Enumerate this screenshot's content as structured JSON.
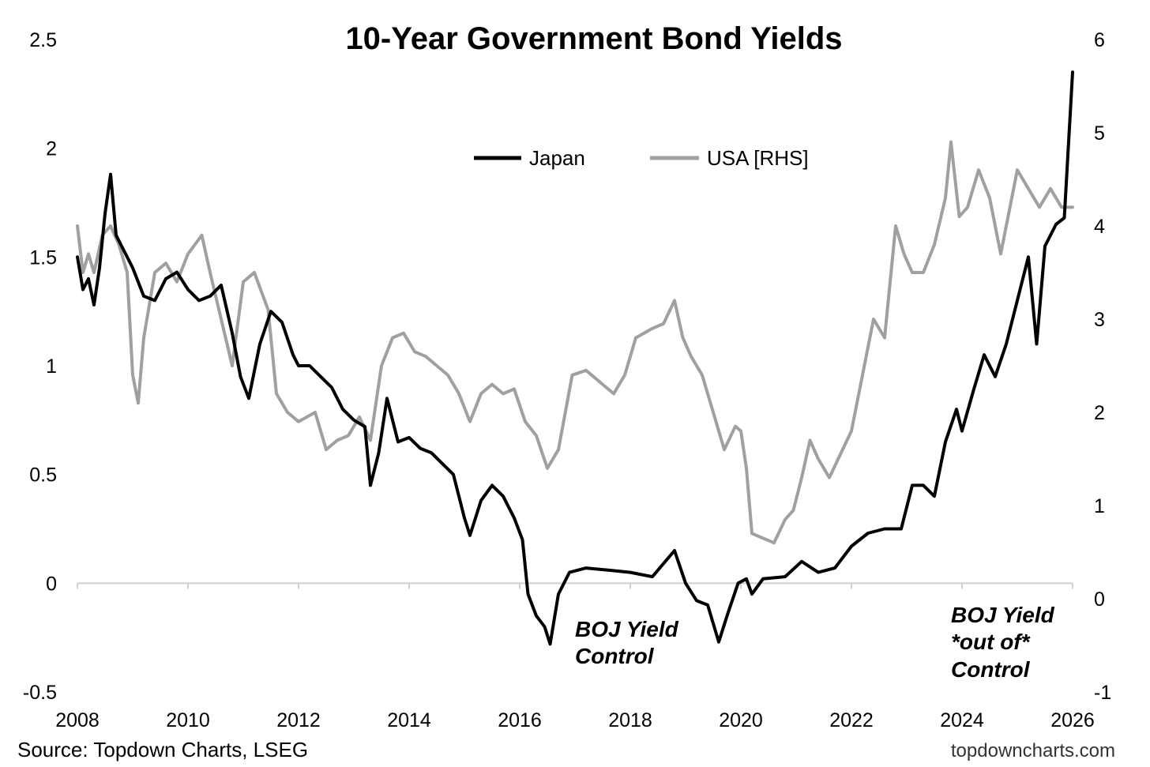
{
  "chart_data": {
    "type": "line",
    "title": "10-Year Government Bond Yields",
    "x_ticks": [
      "2008",
      "2010",
      "2012",
      "2014",
      "2016",
      "2018",
      "2020",
      "2022",
      "2024",
      "2026"
    ],
    "x_range": [
      2008,
      2026
    ],
    "y_left": {
      "ylim": [
        -0.5,
        2.5
      ],
      "ticks": [
        "-0.5",
        "0",
        "0.5",
        "1",
        "1.5",
        "2",
        "2.5"
      ]
    },
    "y_right": {
      "ylim": [
        -1,
        6
      ],
      "ticks": [
        "-1",
        "0",
        "1",
        "2",
        "3",
        "4",
        "5",
        "6"
      ]
    },
    "zero_line": true,
    "legend_position": "top-center",
    "series": [
      {
        "name": "Japan",
        "axis": "left",
        "color": "#000000",
        "points": [
          [
            2008.0,
            1.5
          ],
          [
            2008.1,
            1.35
          ],
          [
            2008.2,
            1.4
          ],
          [
            2008.3,
            1.28
          ],
          [
            2008.4,
            1.45
          ],
          [
            2008.5,
            1.7
          ],
          [
            2008.6,
            1.88
          ],
          [
            2008.7,
            1.6
          ],
          [
            2008.8,
            1.55
          ],
          [
            2008.9,
            1.5
          ],
          [
            2009.0,
            1.45
          ],
          [
            2009.2,
            1.32
          ],
          [
            2009.4,
            1.3
          ],
          [
            2009.6,
            1.4
          ],
          [
            2009.8,
            1.43
          ],
          [
            2010.0,
            1.35
          ],
          [
            2010.2,
            1.3
          ],
          [
            2010.4,
            1.32
          ],
          [
            2010.6,
            1.37
          ],
          [
            2010.8,
            1.15
          ],
          [
            2010.95,
            0.95
          ],
          [
            2011.1,
            0.85
          ],
          [
            2011.3,
            1.1
          ],
          [
            2011.5,
            1.25
          ],
          [
            2011.7,
            1.2
          ],
          [
            2011.9,
            1.05
          ],
          [
            2012.0,
            1.0
          ],
          [
            2012.2,
            1.0
          ],
          [
            2012.4,
            0.95
          ],
          [
            2012.6,
            0.9
          ],
          [
            2012.8,
            0.8
          ],
          [
            2013.0,
            0.75
          ],
          [
            2013.2,
            0.72
          ],
          [
            2013.3,
            0.45
          ],
          [
            2013.45,
            0.6
          ],
          [
            2013.6,
            0.85
          ],
          [
            2013.8,
            0.65
          ],
          [
            2014.0,
            0.67
          ],
          [
            2014.2,
            0.62
          ],
          [
            2014.4,
            0.6
          ],
          [
            2014.6,
            0.55
          ],
          [
            2014.8,
            0.5
          ],
          [
            2015.0,
            0.3
          ],
          [
            2015.1,
            0.22
          ],
          [
            2015.3,
            0.38
          ],
          [
            2015.5,
            0.45
          ],
          [
            2015.7,
            0.4
          ],
          [
            2015.9,
            0.3
          ],
          [
            2016.05,
            0.2
          ],
          [
            2016.15,
            -0.05
          ],
          [
            2016.3,
            -0.15
          ],
          [
            2016.45,
            -0.2
          ],
          [
            2016.55,
            -0.28
          ],
          [
            2016.7,
            -0.05
          ],
          [
            2016.9,
            0.05
          ],
          [
            2017.2,
            0.07
          ],
          [
            2017.6,
            0.06
          ],
          [
            2018.0,
            0.05
          ],
          [
            2018.4,
            0.03
          ],
          [
            2018.8,
            0.15
          ],
          [
            2019.0,
            0.0
          ],
          [
            2019.2,
            -0.08
          ],
          [
            2019.4,
            -0.1
          ],
          [
            2019.6,
            -0.27
          ],
          [
            2019.75,
            -0.15
          ],
          [
            2019.95,
            0.0
          ],
          [
            2020.1,
            0.02
          ],
          [
            2020.2,
            -0.05
          ],
          [
            2020.4,
            0.02
          ],
          [
            2020.8,
            0.03
          ],
          [
            2021.1,
            0.1
          ],
          [
            2021.4,
            0.05
          ],
          [
            2021.7,
            0.07
          ],
          [
            2022.0,
            0.17
          ],
          [
            2022.3,
            0.23
          ],
          [
            2022.6,
            0.25
          ],
          [
            2022.9,
            0.25
          ],
          [
            2023.1,
            0.45
          ],
          [
            2023.3,
            0.45
          ],
          [
            2023.5,
            0.4
          ],
          [
            2023.7,
            0.65
          ],
          [
            2023.9,
            0.8
          ],
          [
            2024.0,
            0.7
          ],
          [
            2024.2,
            0.88
          ],
          [
            2024.4,
            1.05
          ],
          [
            2024.6,
            0.95
          ],
          [
            2024.8,
            1.1
          ],
          [
            2025.0,
            1.3
          ],
          [
            2025.2,
            1.5
          ],
          [
            2025.35,
            1.1
          ],
          [
            2025.5,
            1.55
          ],
          [
            2025.7,
            1.65
          ],
          [
            2025.85,
            1.68
          ],
          [
            2026.0,
            2.35
          ]
        ]
      },
      {
        "name": "USA [RHS]",
        "axis": "right",
        "color": "#a0a0a0",
        "points": [
          [
            2008.0,
            4.0
          ],
          [
            2008.1,
            3.5
          ],
          [
            2008.2,
            3.7
          ],
          [
            2008.3,
            3.5
          ],
          [
            2008.45,
            3.9
          ],
          [
            2008.6,
            4.0
          ],
          [
            2008.75,
            3.8
          ],
          [
            2008.9,
            3.5
          ],
          [
            2009.0,
            2.4
          ],
          [
            2009.1,
            2.1
          ],
          [
            2009.2,
            2.8
          ],
          [
            2009.4,
            3.5
          ],
          [
            2009.6,
            3.6
          ],
          [
            2009.8,
            3.4
          ],
          [
            2010.0,
            3.7
          ],
          [
            2010.25,
            3.9
          ],
          [
            2010.4,
            3.5
          ],
          [
            2010.6,
            3.0
          ],
          [
            2010.8,
            2.5
          ],
          [
            2011.0,
            3.4
          ],
          [
            2011.2,
            3.5
          ],
          [
            2011.45,
            3.1
          ],
          [
            2011.6,
            2.2
          ],
          [
            2011.8,
            2.0
          ],
          [
            2012.0,
            1.9
          ],
          [
            2012.3,
            2.0
          ],
          [
            2012.5,
            1.6
          ],
          [
            2012.7,
            1.7
          ],
          [
            2012.9,
            1.75
          ],
          [
            2013.1,
            1.95
          ],
          [
            2013.3,
            1.7
          ],
          [
            2013.5,
            2.5
          ],
          [
            2013.7,
            2.8
          ],
          [
            2013.9,
            2.85
          ],
          [
            2014.1,
            2.65
          ],
          [
            2014.3,
            2.6
          ],
          [
            2014.5,
            2.5
          ],
          [
            2014.7,
            2.4
          ],
          [
            2014.9,
            2.2
          ],
          [
            2015.1,
            1.9
          ],
          [
            2015.3,
            2.2
          ],
          [
            2015.5,
            2.3
          ],
          [
            2015.7,
            2.2
          ],
          [
            2015.9,
            2.25
          ],
          [
            2016.1,
            1.9
          ],
          [
            2016.3,
            1.75
          ],
          [
            2016.5,
            1.4
          ],
          [
            2016.7,
            1.6
          ],
          [
            2016.95,
            2.4
          ],
          [
            2017.2,
            2.45
          ],
          [
            2017.5,
            2.3
          ],
          [
            2017.7,
            2.2
          ],
          [
            2017.9,
            2.4
          ],
          [
            2018.1,
            2.8
          ],
          [
            2018.4,
            2.9
          ],
          [
            2018.6,
            2.95
          ],
          [
            2018.8,
            3.2
          ],
          [
            2018.95,
            2.8
          ],
          [
            2019.1,
            2.6
          ],
          [
            2019.3,
            2.4
          ],
          [
            2019.5,
            2.0
          ],
          [
            2019.7,
            1.6
          ],
          [
            2019.9,
            1.85
          ],
          [
            2020.0,
            1.8
          ],
          [
            2020.1,
            1.4
          ],
          [
            2020.2,
            0.7
          ],
          [
            2020.4,
            0.65
          ],
          [
            2020.6,
            0.6
          ],
          [
            2020.8,
            0.85
          ],
          [
            2020.95,
            0.95
          ],
          [
            2021.1,
            1.3
          ],
          [
            2021.25,
            1.7
          ],
          [
            2021.4,
            1.5
          ],
          [
            2021.6,
            1.3
          ],
          [
            2021.8,
            1.55
          ],
          [
            2022.0,
            1.8
          ],
          [
            2022.2,
            2.4
          ],
          [
            2022.4,
            3.0
          ],
          [
            2022.6,
            2.8
          ],
          [
            2022.8,
            4.0
          ],
          [
            2022.95,
            3.7
          ],
          [
            2023.1,
            3.5
          ],
          [
            2023.3,
            3.5
          ],
          [
            2023.5,
            3.8
          ],
          [
            2023.7,
            4.3
          ],
          [
            2023.8,
            4.9
          ],
          [
            2023.95,
            4.1
          ],
          [
            2024.1,
            4.2
          ],
          [
            2024.3,
            4.6
          ],
          [
            2024.5,
            4.3
          ],
          [
            2024.7,
            3.7
          ],
          [
            2024.9,
            4.3
          ],
          [
            2025.0,
            4.6
          ],
          [
            2025.2,
            4.4
          ],
          [
            2025.4,
            4.2
          ],
          [
            2025.6,
            4.4
          ],
          [
            2025.8,
            4.2
          ],
          [
            2026.0,
            4.2
          ]
        ]
      }
    ],
    "annotations": [
      {
        "lines": [
          "BOJ Yield",
          "Control"
        ]
      },
      {
        "lines": [
          "BOJ Yield",
          "*out of*",
          "Control"
        ]
      }
    ],
    "source": "Source: Topdown Charts, LSEG",
    "credit": "topdowncharts.com"
  }
}
